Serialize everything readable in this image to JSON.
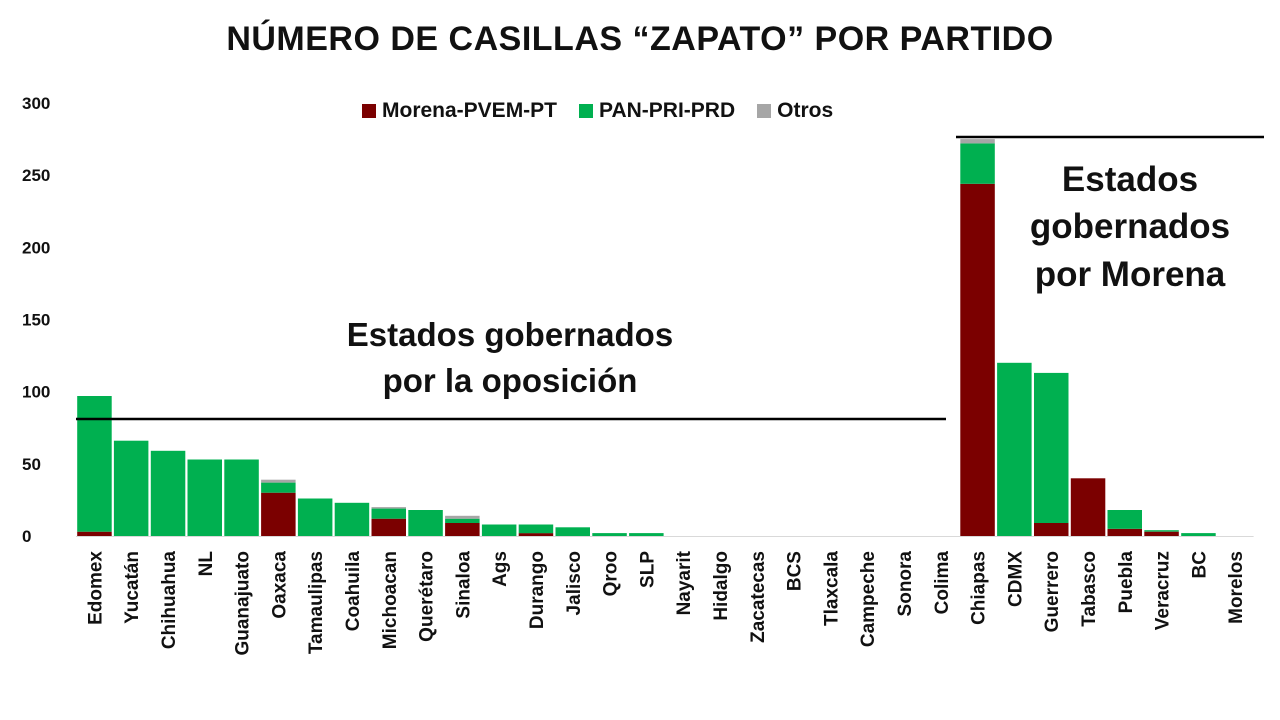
{
  "chart_data": {
    "type": "bar",
    "stacked": true,
    "title": "NÚMERO DE CASILLAS “ZAPATO” POR PARTIDO",
    "xlabel": "",
    "ylabel": "",
    "ylim": [
      0,
      300
    ],
    "yticks": [
      0,
      50,
      100,
      150,
      200,
      250,
      300
    ],
    "grid": false,
    "legend_position": "top",
    "categories": [
      "Edomex",
      "Yucatán",
      "Chihuahua",
      "NL",
      "Guanajuato",
      "Oaxaca",
      "Tamaulipas",
      "Coahuila",
      "Michoacan",
      "Querétaro",
      "Sinaloa",
      "Ags",
      "Durango",
      "Jalisco",
      "Qroo",
      "SLP",
      "Nayarit",
      "Hidalgo",
      "Zacatecas",
      "BCS",
      "Tlaxcala",
      "Campeche",
      "Sonora",
      "Colima",
      "Chiapas",
      "CDMX",
      "Guerrero",
      "Tabasco",
      "Puebla",
      "Veracruz",
      "BC",
      "Morelos"
    ],
    "series": [
      {
        "name": "Morena-PVEM-PT",
        "color": "#7b0000",
        "values": [
          3,
          0,
          0,
          0,
          0,
          30,
          0,
          0,
          12,
          0,
          9,
          0,
          2,
          0,
          0,
          0,
          0,
          0,
          0,
          0,
          0,
          0,
          0,
          0,
          244,
          0,
          9,
          40,
          5,
          3,
          0,
          0
        ]
      },
      {
        "name": "PAN-PRI-PRD",
        "color": "#00b050",
        "values": [
          94,
          66,
          59,
          53,
          53,
          7,
          26,
          23,
          7,
          18,
          3,
          8,
          6,
          6,
          2,
          2,
          0,
          0,
          0,
          0,
          0,
          0,
          0,
          0,
          28,
          120,
          104,
          0,
          13,
          1,
          2,
          0
        ]
      },
      {
        "name": "Otros",
        "color": "#a6a6a6",
        "values": [
          0,
          0,
          0,
          0,
          0,
          2,
          0,
          0,
          1,
          0,
          2,
          0,
          0,
          0,
          0,
          0,
          0,
          0,
          0,
          0,
          0,
          0,
          0,
          0,
          3,
          0,
          0,
          0,
          0,
          0,
          0,
          0
        ]
      }
    ],
    "annotations": [
      {
        "id": "opposition",
        "lines": [
          "Estados gobernados",
          "por la oposición"
        ]
      },
      {
        "id": "morena",
        "lines": [
          "Estados",
          "gobernados",
          "por Morena"
        ]
      }
    ]
  }
}
